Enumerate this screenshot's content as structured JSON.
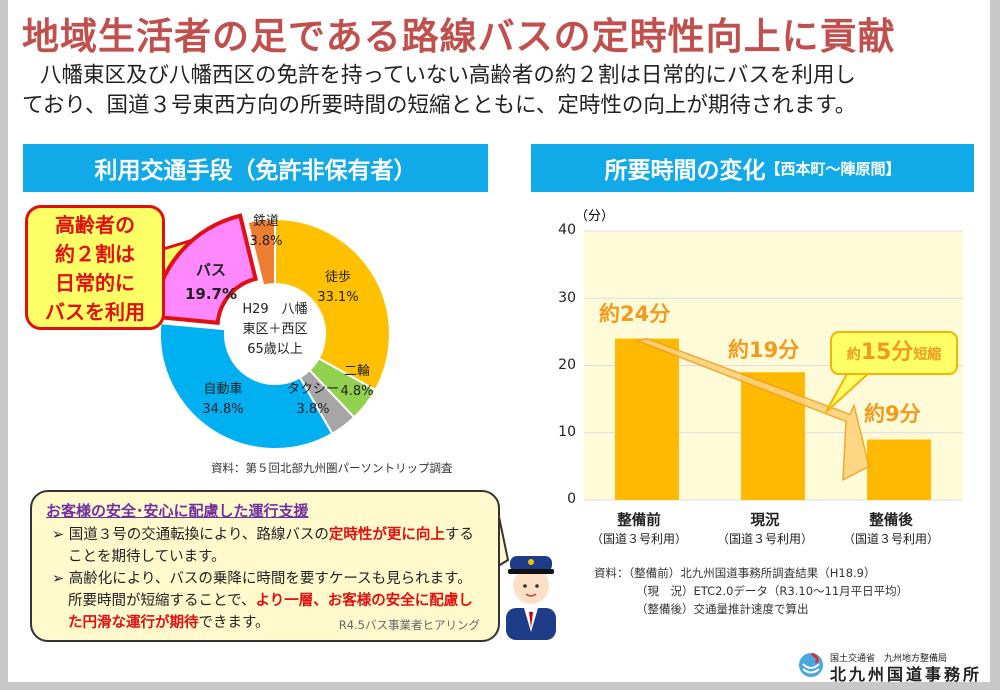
{
  "title": "地域生活者の足である路線バスの定時性向上に貢献",
  "lead": [
    "八幡東区及び八幡西区の免許を持っていない高齢者の約２割は日常的にバスを利用し",
    "ており、国道３号東西方向の所要時間の短縮とともに、定時性の向上が期待されます。"
  ],
  "left_panel": {
    "header": "利用交通手段（免許非保有者）",
    "callout": [
      "高齢者の",
      "約２割は",
      "日常的に",
      "バスを利用"
    ],
    "center_label": [
      "H29　八幡",
      "東区＋西区",
      "65歳以上"
    ],
    "source": "資料：第５回北部九州圏パーソントリップ調査"
  },
  "note": {
    "heading": "お客様の安全･安心に配慮した運行支援",
    "b1_a": "国道３号の交通転換により、路線バスの",
    "b1_red": "定時性が更に向上",
    "b1_b": "することを期待しています。",
    "b2_a": "高齢化により、バスの乗降に時間を要すケースも見られます。所要時間が短縮することで、",
    "b2_red": "より一層、お客様の安全に配慮した円滑な運行が期待",
    "b2_b": "できます。",
    "cite": "R4.5バス事業者ヒアリング"
  },
  "right_panel": {
    "header": "所要時間の変化",
    "header_sub": "【西本町～陣原間】",
    "source": [
      "資料：（整備前）北九州国道事務所調査結果（H18.9）",
      "（現　況）ETC2.0データ（R3.10～11月平日平均）",
      "（整備後）交通量推計速度で算出"
    ],
    "reduction": {
      "pre": "約",
      "num": "15分",
      "post": "短縮"
    }
  },
  "logo": {
    "ministry": "国土交通省　九州地方整備局",
    "office": "北九州国道事務所"
  },
  "chart_data": [
    {
      "type": "pie",
      "donut": true,
      "slices": [
        {
          "label": "徒歩",
          "value": 33.1,
          "text": "33.1%",
          "color": "#FFC000"
        },
        {
          "label": "二輪",
          "value": 4.8,
          "text": "4.8%",
          "color": "#92D050"
        },
        {
          "label": "タクシー",
          "value": 3.8,
          "text": "3.8%",
          "color": "#A6A6A6"
        },
        {
          "label": "自動車",
          "value": 34.8,
          "text": "34.8%",
          "color": "#00B0F0"
        },
        {
          "label": "バス",
          "value": 19.7,
          "text": "19.7%",
          "color": "#FF88FF",
          "highlight": true
        },
        {
          "label": "鉄道",
          "value": 3.8,
          "text": "3.8%",
          "color": "#ED7D31"
        }
      ]
    },
    {
      "type": "bar",
      "ylabel": "（分）",
      "ylim": [
        0,
        40
      ],
      "yticks": [
        "0",
        "10",
        "20",
        "30",
        "40"
      ],
      "grid": true,
      "categories": [
        "整備前",
        "現況",
        "整備後"
      ],
      "subcategories": [
        "（国道３号利用）",
        "（国道３号利用）",
        "（国道３号利用）"
      ],
      "values": [
        24,
        19,
        9
      ],
      "data_labels": [
        "約24分",
        "約19分",
        "約9分"
      ],
      "color": "#FFB900"
    }
  ]
}
